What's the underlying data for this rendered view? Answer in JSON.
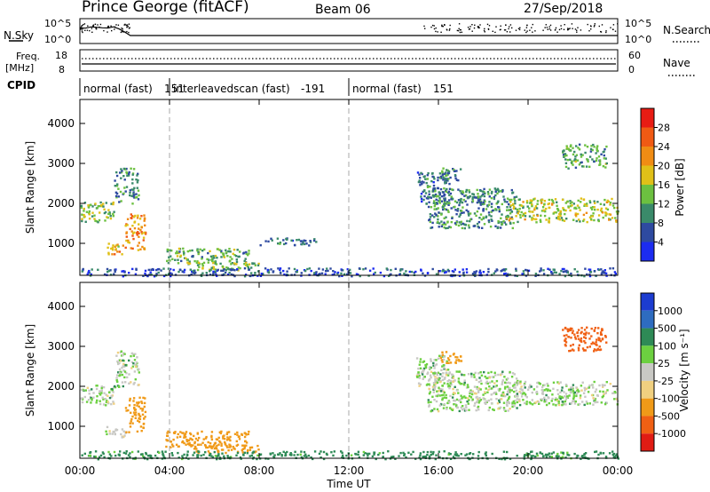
{
  "header": {
    "station": "Prince George (fitACF)",
    "beam": "Beam 06",
    "date": "27/Sep/2018"
  },
  "noise_panel": {
    "left_label": "N.Sky",
    "left_ticks": [
      "10^5",
      "10^0"
    ],
    "right_label": "N.Search",
    "right_ticks": [
      "10^5",
      "10^0"
    ]
  },
  "freq_panel": {
    "left_label_lines": [
      "Freq.",
      "[MHz]"
    ],
    "left_ticks": [
      "18",
      "8"
    ],
    "right_label": "Nave",
    "right_ticks": [
      "60",
      "0"
    ]
  },
  "cpid": {
    "label": "CPID",
    "segments": [
      {
        "name": "normal (fast)",
        "id": "151",
        "start_h": 0,
        "end_h": 4
      },
      {
        "name": "interleavedscan (fast)",
        "id": "-191",
        "start_h": 4,
        "end_h": 12
      },
      {
        "name": "normal (fast)",
        "id": "151",
        "start_h": 12,
        "end_h": 24
      }
    ]
  },
  "time_axis": {
    "label": "Time UT",
    "tick_hours": [
      0,
      4,
      8,
      12,
      16,
      20,
      24
    ],
    "tick_labels": [
      "00:00",
      "04:00",
      "08:00",
      "12:00",
      "16:00",
      "20:00",
      "00:00"
    ]
  },
  "range_axis": {
    "label": "Slant Range [km]",
    "ticks": [
      1000,
      2000,
      3000,
      4000
    ],
    "ylim": [
      200,
      4600
    ]
  },
  "power_colorbar": {
    "label": "Power [dB]",
    "ticks": [
      "4",
      "8",
      "12",
      "16",
      "20",
      "24",
      "28"
    ],
    "colors": [
      "#1c2cf0",
      "#2e4aa0",
      "#3a8a6a",
      "#6cc040",
      "#e0c018",
      "#f08c14",
      "#f05a14",
      "#e81c14"
    ]
  },
  "velocity_colorbar": {
    "label": "Velocity [m s⁻¹]",
    "ticks": [
      "1000",
      "500",
      "100",
      "25",
      "-25",
      "-100",
      "-500",
      "-1000"
    ],
    "colors": [
      "#1c3cd0",
      "#2e6cc0",
      "#2e8a56",
      "#6cd040",
      "#c8c8c4",
      "#f0d080",
      "#f09a18",
      "#f06014",
      "#e01c14"
    ]
  },
  "chart_data": [
    {
      "type": "heatmap",
      "title": "Power [dB]",
      "xlabel": "Time UT",
      "ylabel": "Slant Range [km]",
      "x_range_hours": [
        0,
        24
      ],
      "ylim": [
        200,
        4600
      ],
      "echo_regions": [
        {
          "t0": 0.0,
          "t1": 1.5,
          "r0": 1550,
          "r1": 2050,
          "power_db": 14
        },
        {
          "t0": 1.5,
          "t1": 2.6,
          "r0": 2000,
          "r1": 2900,
          "power_db": 10
        },
        {
          "t0": 1.1,
          "t1": 2.0,
          "r0": 750,
          "r1": 1050,
          "power_db": 20
        },
        {
          "t0": 2.0,
          "t1": 2.9,
          "r0": 850,
          "r1": 1750,
          "power_db": 22
        },
        {
          "t0": 3.8,
          "t1": 7.5,
          "r0": 500,
          "r1": 900,
          "power_db": 12
        },
        {
          "t0": 5.0,
          "t1": 8.0,
          "r0": 350,
          "r1": 550,
          "power_db": 14
        },
        {
          "t0": 8.0,
          "t1": 10.5,
          "r0": 950,
          "r1": 1150,
          "power_db": 8
        },
        {
          "t0": 15.0,
          "t1": 16.5,
          "r0": 2000,
          "r1": 2800,
          "power_db": 8
        },
        {
          "t0": 16.0,
          "t1": 17.0,
          "r0": 2600,
          "r1": 2900,
          "power_db": 10
        },
        {
          "t0": 15.5,
          "t1": 19.5,
          "r0": 1400,
          "r1": 2400,
          "power_db": 10
        },
        {
          "t0": 19.0,
          "t1": 24.0,
          "r0": 1550,
          "r1": 2150,
          "power_db": 16
        },
        {
          "t0": 21.5,
          "t1": 23.5,
          "r0": 2900,
          "r1": 3500,
          "power_db": 12
        },
        {
          "t0": 0.0,
          "t1": 24.0,
          "r0": 200,
          "r1": 400,
          "power_db": 6
        }
      ]
    },
    {
      "type": "heatmap",
      "title": "Velocity [m s-1]",
      "xlabel": "Time UT",
      "ylabel": "Slant Range [km]",
      "x_range_hours": [
        0,
        24
      ],
      "ylim": [
        200,
        4600
      ],
      "echo_regions": [
        {
          "t0": 0.0,
          "t1": 1.5,
          "r0": 1550,
          "r1": 2050,
          "velocity": 0
        },
        {
          "t0": 1.5,
          "t1": 2.6,
          "r0": 2000,
          "r1": 2900,
          "velocity": 0
        },
        {
          "t0": 1.1,
          "t1": 2.0,
          "r0": 750,
          "r1": 1050,
          "velocity": 0
        },
        {
          "t0": 2.0,
          "t1": 2.9,
          "r0": 850,
          "r1": 1750,
          "velocity": -300
        },
        {
          "t0": 3.8,
          "t1": 7.5,
          "r0": 500,
          "r1": 900,
          "velocity": -300
        },
        {
          "t0": 5.0,
          "t1": 8.0,
          "r0": 350,
          "r1": 550,
          "velocity": -200
        },
        {
          "t0": 15.0,
          "t1": 16.5,
          "r0": 2000,
          "r1": 2800,
          "velocity": 0
        },
        {
          "t0": 16.0,
          "t1": 17.0,
          "r0": 2600,
          "r1": 2900,
          "velocity": -300
        },
        {
          "t0": 15.5,
          "t1": 19.5,
          "r0": 1400,
          "r1": 2400,
          "velocity": 0
        },
        {
          "t0": 19.0,
          "t1": 24.0,
          "r0": 1550,
          "r1": 2150,
          "velocity": 0
        },
        {
          "t0": 21.5,
          "t1": 23.5,
          "r0": 2900,
          "r1": 3500,
          "velocity": -700
        },
        {
          "t0": 0.0,
          "t1": 24.0,
          "r0": 200,
          "r1": 400,
          "velocity": 50
        }
      ]
    }
  ]
}
